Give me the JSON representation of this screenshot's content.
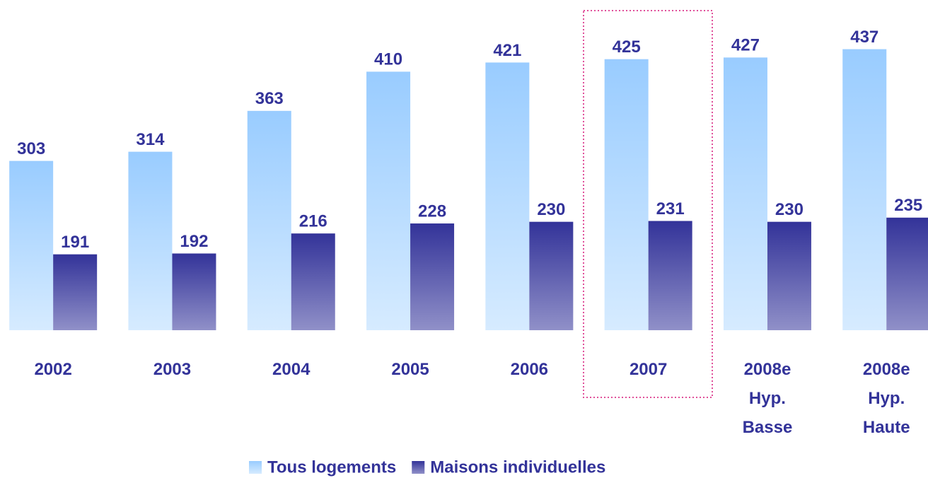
{
  "chart_data": {
    "type": "bar",
    "categories": [
      "2002",
      "2003",
      "2004",
      "2005",
      "2006",
      "2007",
      "2008e\nHyp.\nBasse",
      "2008e\nHyp.\nHaute"
    ],
    "series": [
      {
        "name": "Tous logements",
        "color": "#99ccff",
        "values": [
          303,
          314,
          363,
          410,
          421,
          425,
          427,
          437
        ]
      },
      {
        "name": "Maisons individuelles",
        "color": "#333399",
        "values": [
          191,
          192,
          216,
          228,
          230,
          231,
          230,
          235
        ]
      }
    ],
    "ylim": [
      100,
      440
    ]
  }
}
